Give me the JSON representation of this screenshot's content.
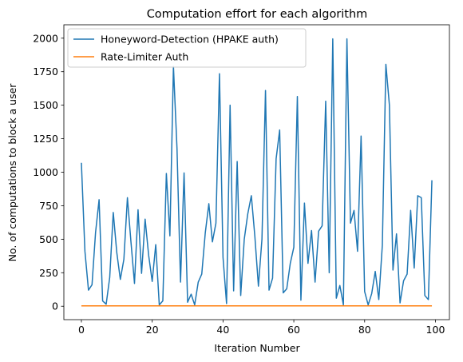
{
  "chart_data": {
    "type": "line",
    "title": "Computation effort for each algorithm",
    "xlabel": "Iteration Number",
    "ylabel": "No. of computations to block a user",
    "xlim": [
      -4.95,
      103.95
    ],
    "ylim": [
      -100,
      2100
    ],
    "xticks": [
      0,
      20,
      40,
      60,
      80,
      100
    ],
    "yticks": [
      0,
      250,
      500,
      750,
      1000,
      1250,
      1500,
      1750,
      2000
    ],
    "grid": false,
    "legend_position": "top-left",
    "x": [
      0,
      1,
      2,
      3,
      4,
      5,
      6,
      7,
      8,
      9,
      10,
      11,
      12,
      13,
      14,
      15,
      16,
      17,
      18,
      19,
      20,
      21,
      22,
      23,
      24,
      25,
      26,
      27,
      28,
      29,
      30,
      31,
      32,
      33,
      34,
      35,
      36,
      37,
      38,
      39,
      40,
      41,
      42,
      43,
      44,
      45,
      46,
      47,
      48,
      49,
      50,
      51,
      52,
      53,
      54,
      55,
      56,
      57,
      58,
      59,
      60,
      61,
      62,
      63,
      64,
      65,
      66,
      67,
      68,
      69,
      70,
      71,
      72,
      73,
      74,
      75,
      76,
      77,
      78,
      79,
      80,
      81,
      82,
      83,
      84,
      85,
      86,
      87,
      88,
      89,
      90,
      91,
      92,
      93,
      94,
      95,
      96,
      97,
      98,
      99
    ],
    "series": [
      {
        "name": "Honeyword-Detection (HPAKE auth)",
        "color": "#1f77b4",
        "values": [
          1070,
          410,
          120,
          160,
          550,
          795,
          40,
          15,
          215,
          700,
          400,
          200,
          350,
          810,
          480,
          170,
          720,
          245,
          650,
          380,
          185,
          460,
          10,
          40,
          990,
          525,
          1790,
          1180,
          180,
          995,
          30,
          90,
          10,
          180,
          240,
          550,
          765,
          480,
          620,
          1735,
          365,
          20,
          1500,
          115,
          1080,
          80,
          500,
          690,
          825,
          520,
          150,
          500,
          1610,
          120,
          210,
          1100,
          1315,
          100,
          130,
          320,
          440,
          1565,
          45,
          770,
          320,
          565,
          180,
          560,
          600,
          1530,
          250,
          1995,
          60,
          155,
          10,
          1995,
          620,
          715,
          410,
          1270,
          110,
          10,
          95,
          260,
          50,
          455,
          1805,
          1500,
          270,
          540,
          25,
          190,
          240,
          715,
          285,
          825,
          810,
          80,
          50,
          940
        ]
      },
      {
        "name": "Rate-Limiter Auth",
        "color": "#ff7f0e",
        "values": [
          3,
          3,
          3,
          3,
          3,
          3,
          3,
          3,
          3,
          3,
          3,
          3,
          3,
          3,
          3,
          3,
          3,
          3,
          3,
          3,
          3,
          3,
          3,
          3,
          3,
          3,
          3,
          3,
          3,
          3,
          3,
          3,
          3,
          3,
          3,
          3,
          3,
          3,
          3,
          3,
          3,
          3,
          3,
          3,
          3,
          3,
          3,
          3,
          3,
          3,
          3,
          3,
          3,
          3,
          3,
          3,
          3,
          3,
          3,
          3,
          3,
          3,
          3,
          3,
          3,
          3,
          3,
          3,
          3,
          3,
          3,
          3,
          3,
          3,
          3,
          3,
          3,
          3,
          3,
          3,
          3,
          3,
          3,
          3,
          3,
          3,
          3,
          3,
          3,
          3,
          3,
          3,
          3,
          3,
          3,
          3,
          3,
          3,
          3,
          3
        ]
      }
    ]
  }
}
